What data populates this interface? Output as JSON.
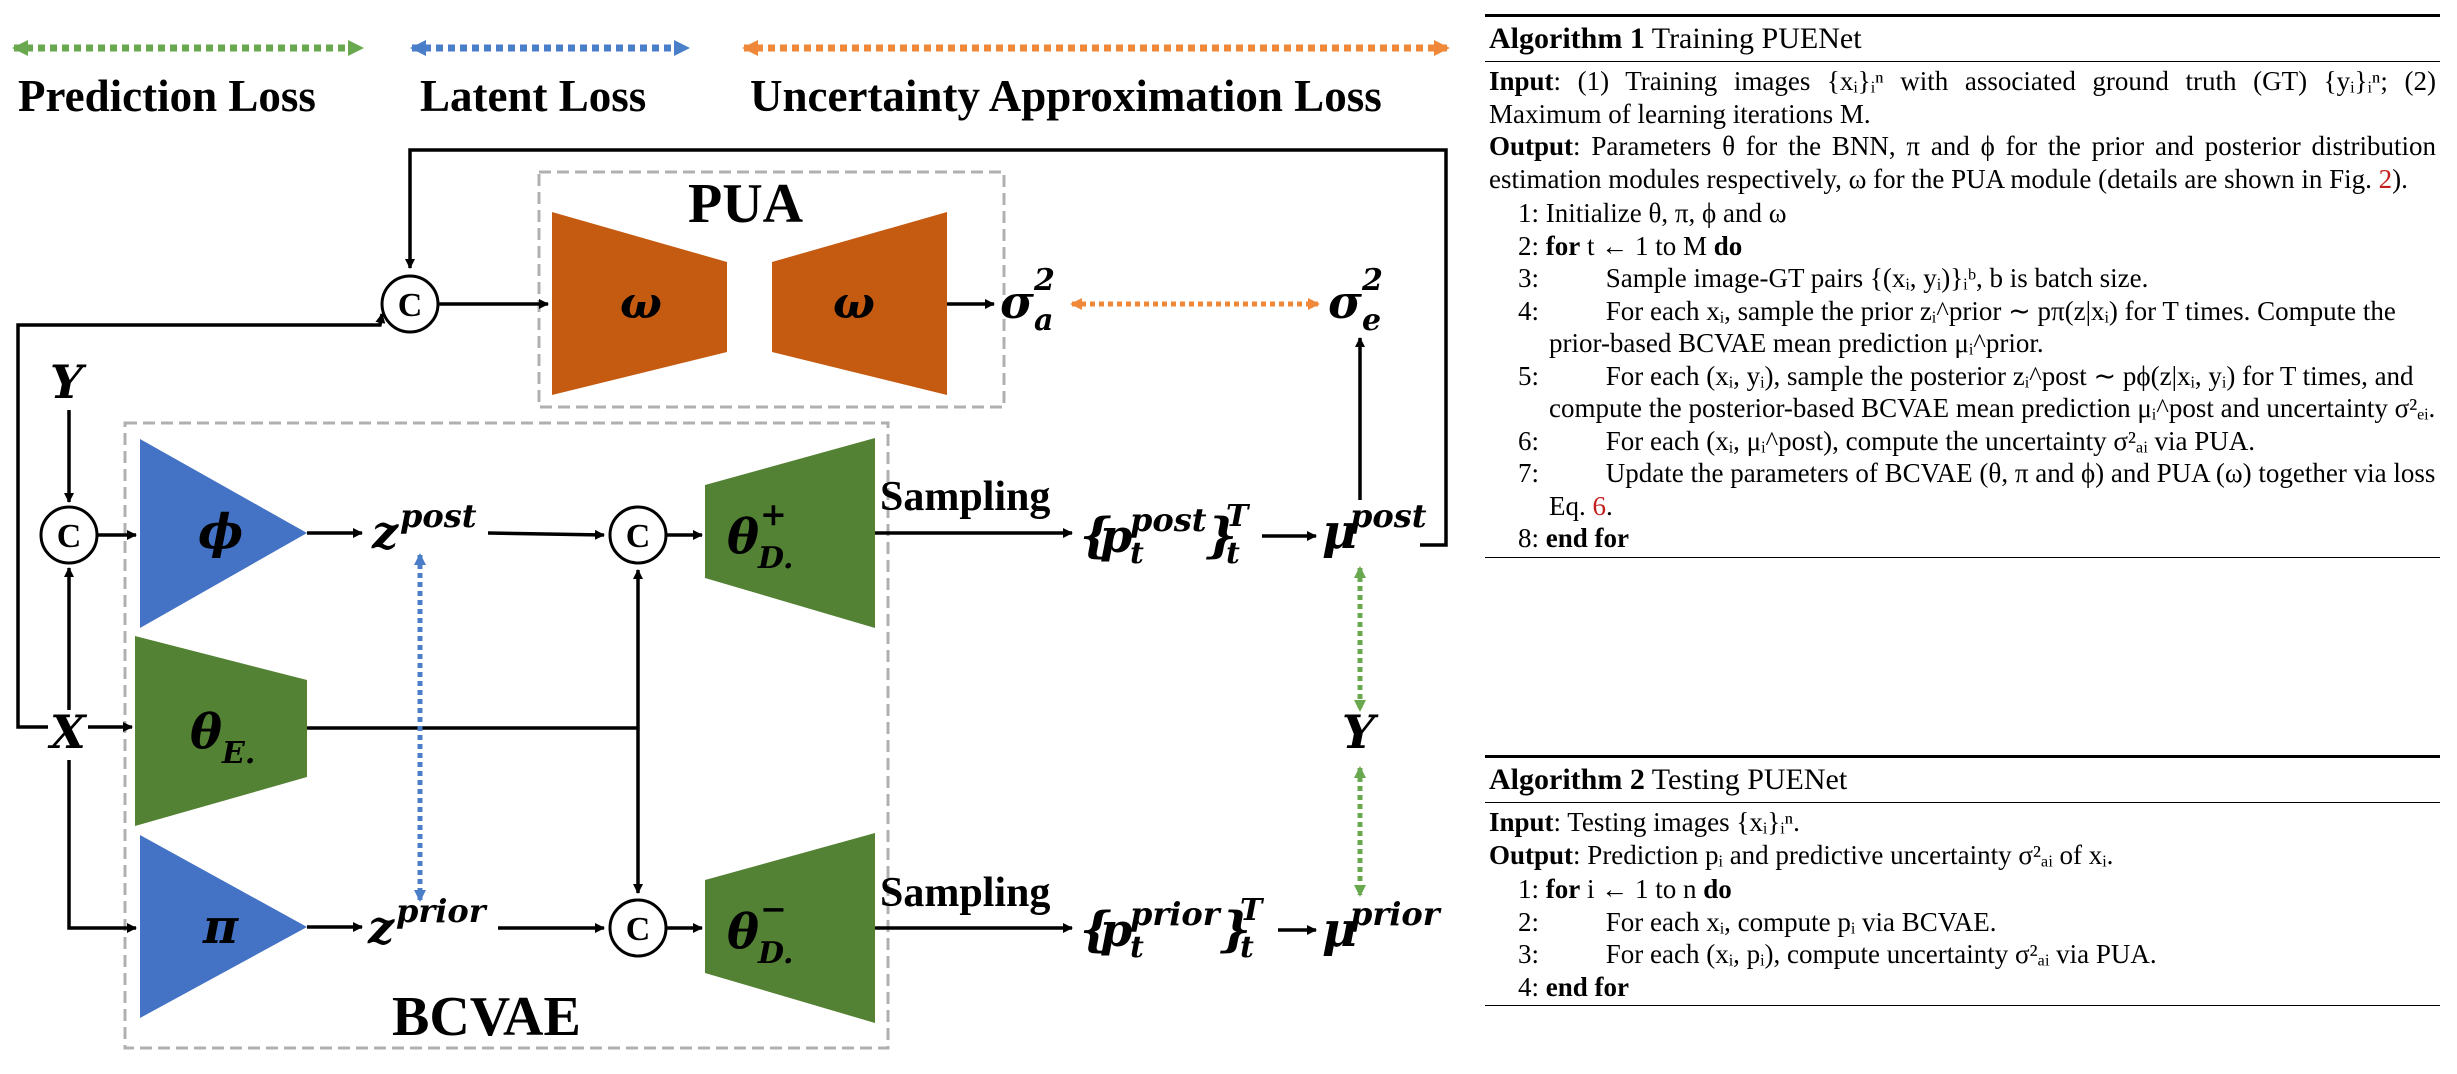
{
  "legend": {
    "prediction_loss": "Prediction Loss",
    "latent_loss": "Latent Loss",
    "uncertainty_loss": "Uncertainty Approximation Loss"
  },
  "colors": {
    "green_dotted": "#6aa84f",
    "blue_dotted": "#4a7ec8",
    "orange_dotted": "#f0883a",
    "encoder_blue": "#4472c4",
    "decoder_green": "#548235",
    "pua_orange": "#c55a11",
    "dashed_box": "#b0b0b0"
  },
  "diagram": {
    "pua_label": "PUA",
    "bcvae_label": "BCVAE",
    "omega": "ω",
    "phi": "ϕ",
    "pi": "π",
    "theta": "θ",
    "sub_E": "E.",
    "sub_D": "D.",
    "plus": "+",
    "minus": "−",
    "concat": "C",
    "Y": "Y",
    "X": "X",
    "z": "z",
    "post": "post",
    "prior": "prior",
    "sigma": "σ",
    "a": "a",
    "e": "e",
    "two": "2",
    "sampling": "Sampling",
    "p": "p",
    "t": "t",
    "T": "T",
    "mu": "μ",
    "lbrace": "{",
    "rbrace": "}"
  },
  "alg1": {
    "title_bold": "Algorithm 1",
    "title_rest": "Training PUENet",
    "input_label": "Input",
    "input_text": ": (1) Training images {xᵢ}ᵢⁿ with associated ground truth (GT) {yᵢ}ᵢⁿ; (2) Maximum of learning iterations M.",
    "output_label": "Output",
    "output_text": ": Parameters θ for the BNN, π and ϕ for the prior and posterior distribution estimation modules respectively, ω for the PUA module (details are shown in Fig. ",
    "output_ref": "2",
    "output_end": ").",
    "lines": [
      {
        "n": "1:",
        "indent": 0,
        "text": "Initialize θ, π, ϕ and ω"
      },
      {
        "n": "2:",
        "indent": 0,
        "kw": "for",
        "text": " t ← 1 to M ",
        "kw2": "do"
      },
      {
        "n": "3:",
        "indent": 1,
        "text": "Sample image-GT pairs {(xᵢ, yᵢ)}ᵢᵇ, b is batch size."
      },
      {
        "n": "4:",
        "indent": 1,
        "text": "For each xᵢ, sample the prior zᵢ^prior ∼ pπ(z|xᵢ) for T times. Compute the prior-based BCVAE mean prediction μᵢ^prior."
      },
      {
        "n": "5:",
        "indent": 1,
        "text": "For each (xᵢ, yᵢ), sample the posterior zᵢ^post ∼ pϕ(z|xᵢ, yᵢ) for T times, and compute the posterior-based BCVAE mean prediction μᵢ^post and uncertainty σ²ₑᵢ."
      },
      {
        "n": "6:",
        "indent": 1,
        "text": "For each (xᵢ, μᵢ^post), compute the uncertainty σ²ₐᵢ via PUA."
      },
      {
        "n": "7:",
        "indent": 1,
        "text": "Update the parameters of BCVAE (θ, π and ϕ) and PUA (ω) together via loss Eq. ",
        "ref": "6",
        "end": "."
      },
      {
        "n": "8:",
        "indent": 0,
        "kw": "end for",
        "text": ""
      }
    ]
  },
  "alg2": {
    "title_bold": "Algorithm 2",
    "title_rest": "Testing PUENet",
    "input_label": "Input",
    "input_text": ": Testing images {xᵢ}ᵢⁿ.",
    "output_label": "Output",
    "output_text": ": Prediction pᵢ and predictive uncertainty σ²ₐᵢ of xᵢ.",
    "lines": [
      {
        "n": "1:",
        "indent": 0,
        "kw": "for",
        "text": " i ← 1 to n ",
        "kw2": "do"
      },
      {
        "n": "2:",
        "indent": 1,
        "text": "For each xᵢ, compute pᵢ via BCVAE."
      },
      {
        "n": "3:",
        "indent": 1,
        "text": "For each (xᵢ, pᵢ), compute uncertainty σ²ₐᵢ via PUA."
      },
      {
        "n": "4:",
        "indent": 0,
        "kw": "end for",
        "text": ""
      }
    ]
  }
}
